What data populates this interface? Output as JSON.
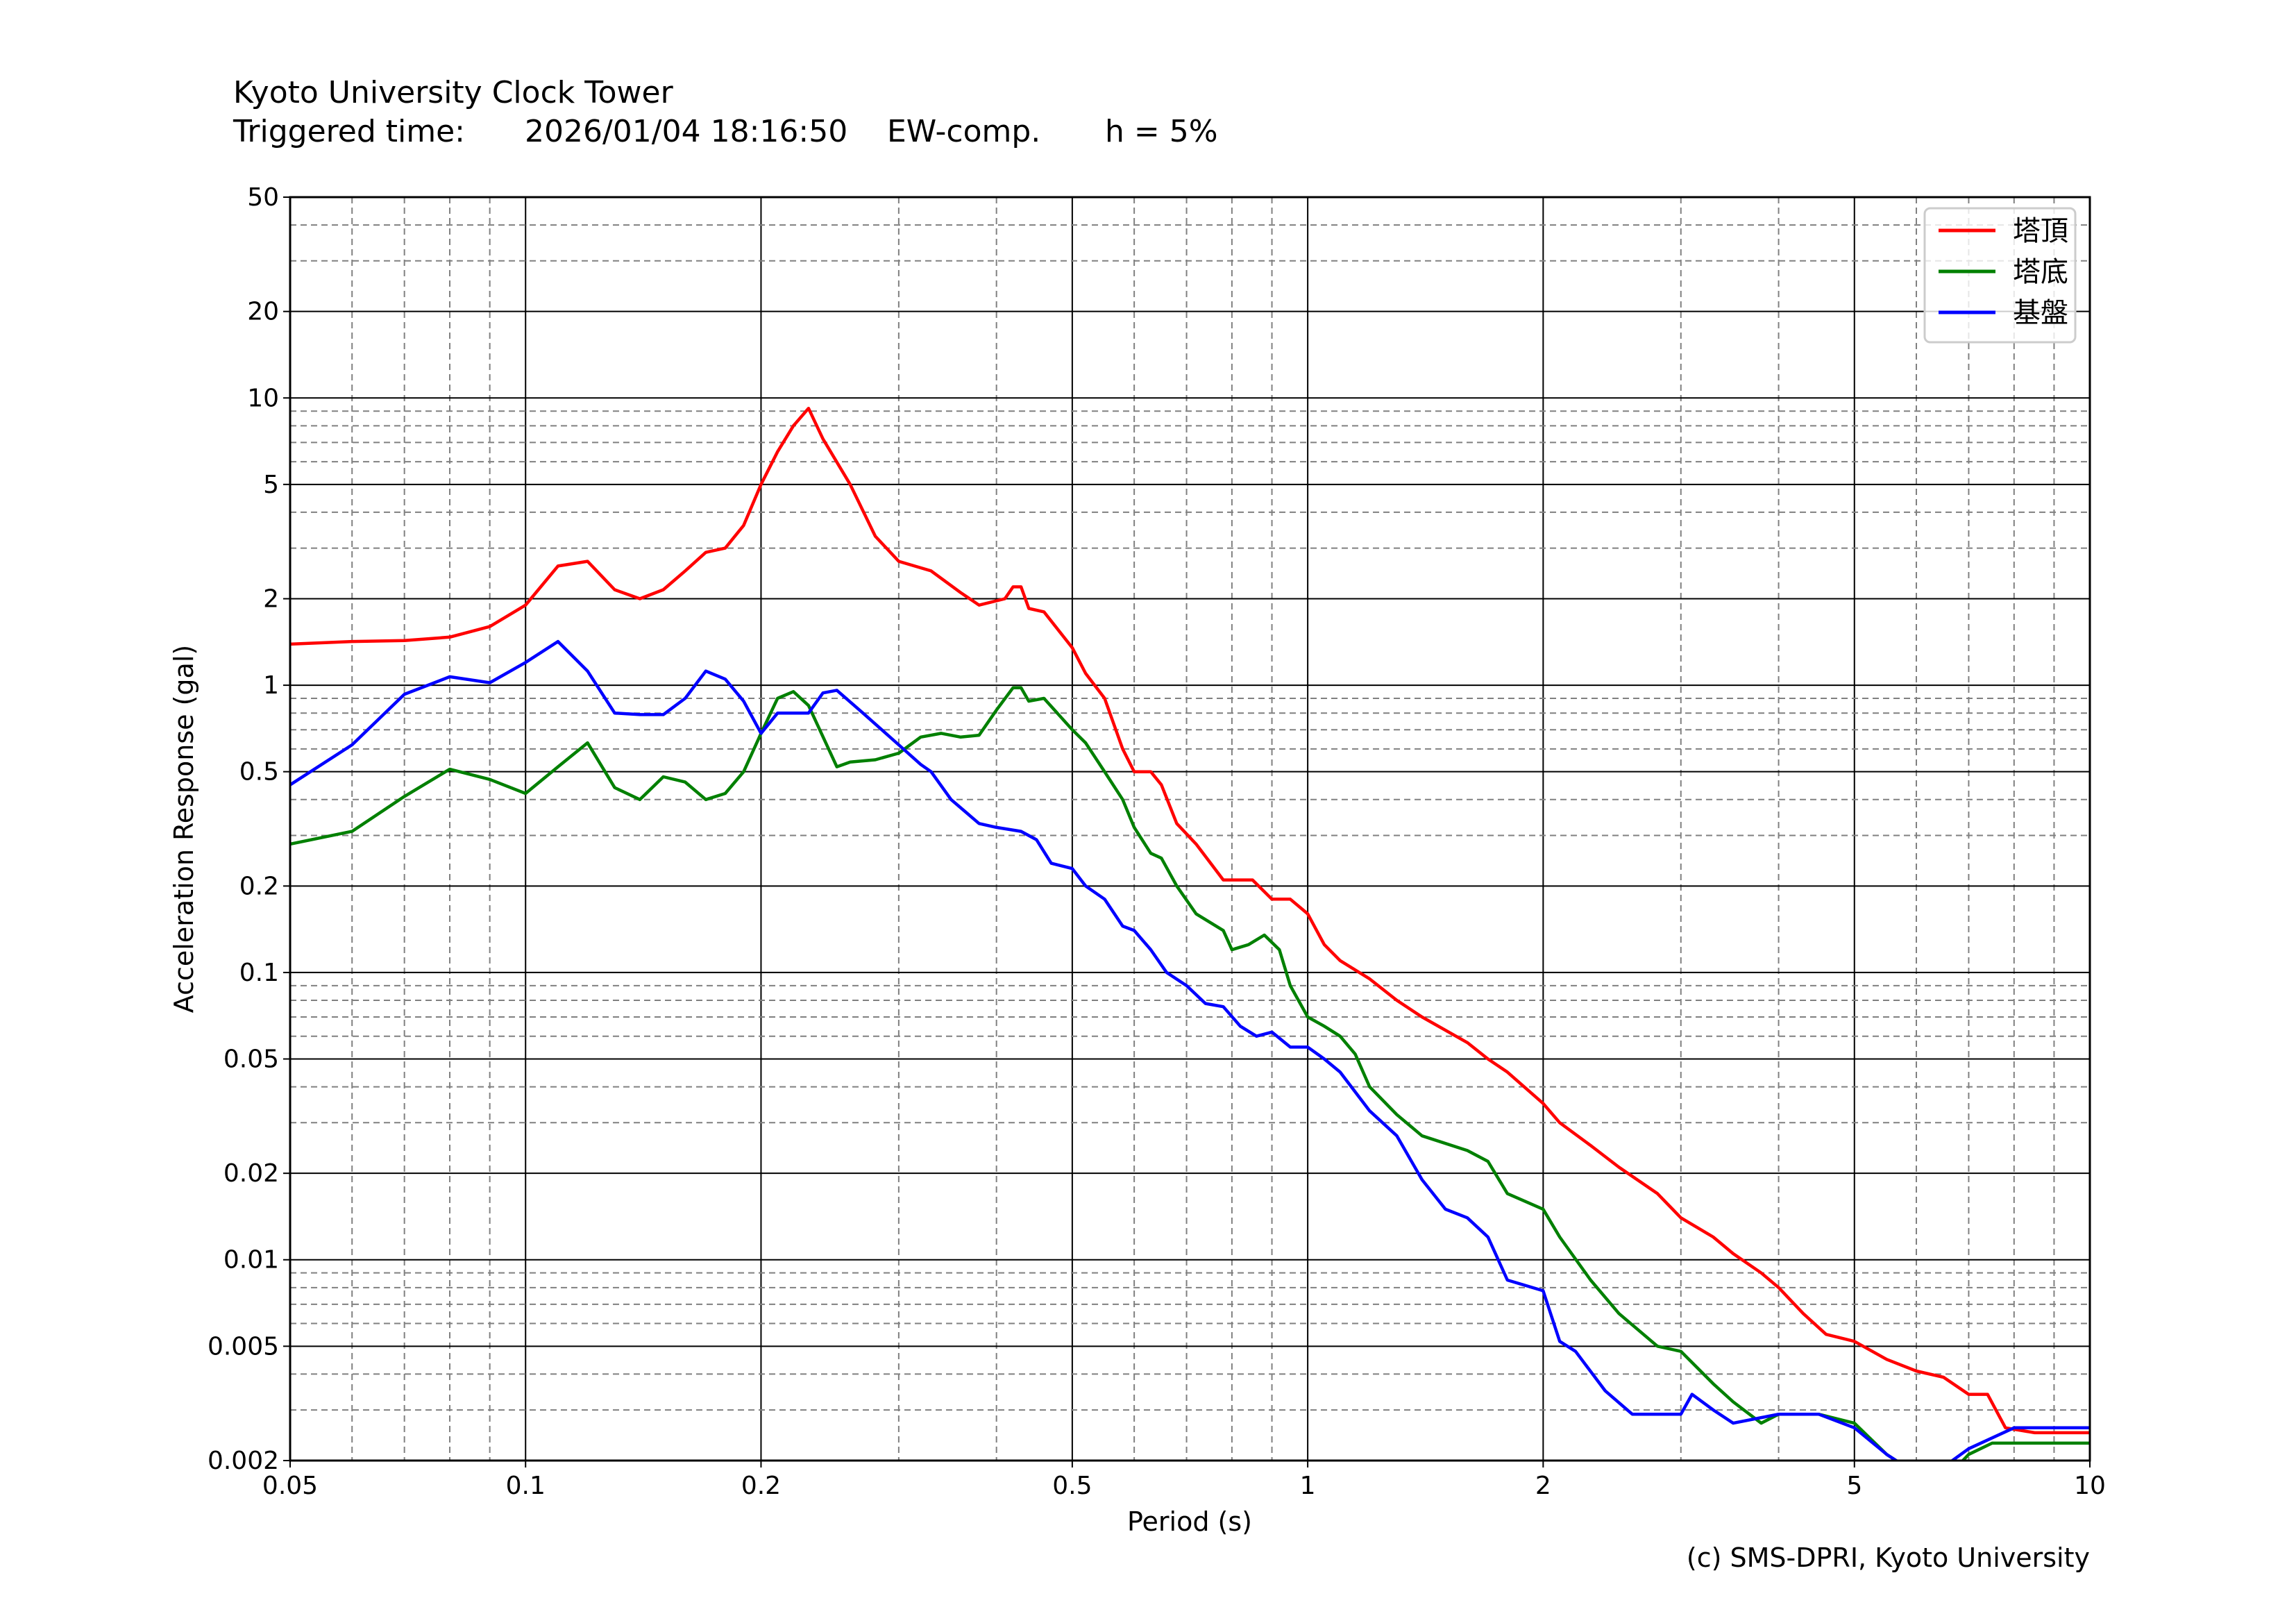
{
  "header": {
    "title": "Kyoto University Clock Tower",
    "trigger_label": "Triggered time:",
    "trigger_time": "2026/01/04 18:16:50",
    "component": "EW-comp.",
    "damping": "h = 5%"
  },
  "credit": "(c) SMS-DPRI, Kyoto University",
  "chart_data": {
    "type": "line",
    "title": "Kyoto University Clock Tower",
    "xlabel": "Period (s)",
    "ylabel": "Acceleration Response (gal)",
    "xscale": "log",
    "yscale": "log",
    "xlim": [
      0.05,
      10
    ],
    "ylim": [
      0.002,
      50
    ],
    "grid": true,
    "legend_position": "top-right",
    "xticks": [
      0.05,
      0.1,
      0.2,
      0.5,
      1,
      2,
      5,
      10
    ],
    "xtick_labels": [
      "0.05",
      "0.1",
      "0.2",
      "0.5",
      "1",
      "2",
      "5",
      "10"
    ],
    "yticks": [
      50,
      20,
      10,
      5,
      2,
      1,
      0.5,
      0.2,
      0.1,
      0.05,
      0.02,
      0.01,
      0.005,
      0.002
    ],
    "ytick_labels": [
      "50",
      "20",
      "10",
      "5",
      "2",
      "1",
      "0.5",
      "0.2",
      "0.1",
      "0.05",
      "0.02",
      "0.01",
      "0.005",
      "0.002"
    ],
    "series": [
      {
        "name": "塔頂",
        "color": "#ff0000",
        "points": [
          [
            0.05,
            1.39
          ],
          [
            0.06,
            1.42
          ],
          [
            0.07,
            1.43
          ],
          [
            0.08,
            1.47
          ],
          [
            0.09,
            1.6
          ],
          [
            0.1,
            1.9
          ],
          [
            0.11,
            2.6
          ],
          [
            0.12,
            2.7
          ],
          [
            0.13,
            2.15
          ],
          [
            0.14,
            2.0
          ],
          [
            0.15,
            2.15
          ],
          [
            0.16,
            2.5
          ],
          [
            0.17,
            2.9
          ],
          [
            0.18,
            3.0
          ],
          [
            0.19,
            3.6
          ],
          [
            0.2,
            5.0
          ],
          [
            0.21,
            6.5
          ],
          [
            0.22,
            8.0
          ],
          [
            0.23,
            9.2
          ],
          [
            0.24,
            7.2
          ],
          [
            0.26,
            5.0
          ],
          [
            0.28,
            3.3
          ],
          [
            0.3,
            2.7
          ],
          [
            0.33,
            2.5
          ],
          [
            0.36,
            2.1
          ],
          [
            0.38,
            1.9
          ],
          [
            0.41,
            2.0
          ],
          [
            0.42,
            2.2
          ],
          [
            0.43,
            2.2
          ],
          [
            0.44,
            1.85
          ],
          [
            0.46,
            1.8
          ],
          [
            0.5,
            1.35
          ],
          [
            0.52,
            1.1
          ],
          [
            0.55,
            0.9
          ],
          [
            0.58,
            0.6
          ],
          [
            0.6,
            0.5
          ],
          [
            0.63,
            0.5
          ],
          [
            0.65,
            0.45
          ],
          [
            0.68,
            0.33
          ],
          [
            0.72,
            0.28
          ],
          [
            0.78,
            0.21
          ],
          [
            0.85,
            0.21
          ],
          [
            0.9,
            0.18
          ],
          [
            0.95,
            0.18
          ],
          [
            1.0,
            0.16
          ],
          [
            1.05,
            0.125
          ],
          [
            1.1,
            0.11
          ],
          [
            1.2,
            0.095
          ],
          [
            1.3,
            0.08
          ],
          [
            1.4,
            0.07
          ],
          [
            1.6,
            0.057
          ],
          [
            1.7,
            0.05
          ],
          [
            1.8,
            0.045
          ],
          [
            2.0,
            0.035
          ],
          [
            2.1,
            0.03
          ],
          [
            2.3,
            0.025
          ],
          [
            2.5,
            0.021
          ],
          [
            2.8,
            0.017
          ],
          [
            3.0,
            0.014
          ],
          [
            3.3,
            0.012
          ],
          [
            3.5,
            0.0105
          ],
          [
            3.8,
            0.009
          ],
          [
            4.0,
            0.008
          ],
          [
            4.3,
            0.0065
          ],
          [
            4.6,
            0.0055
          ],
          [
            5.0,
            0.0052
          ],
          [
            5.5,
            0.0045
          ],
          [
            6.0,
            0.0041
          ],
          [
            6.5,
            0.0039
          ],
          [
            7.0,
            0.0034
          ],
          [
            7.4,
            0.0034
          ],
          [
            7.8,
            0.0026
          ],
          [
            8.5,
            0.0025
          ],
          [
            10,
            0.0025
          ]
        ]
      },
      {
        "name": "塔底",
        "color": "#008000",
        "points": [
          [
            0.05,
            0.28
          ],
          [
            0.06,
            0.31
          ],
          [
            0.07,
            0.41
          ],
          [
            0.08,
            0.51
          ],
          [
            0.09,
            0.47
          ],
          [
            0.1,
            0.42
          ],
          [
            0.11,
            0.52
          ],
          [
            0.12,
            0.63
          ],
          [
            0.13,
            0.44
          ],
          [
            0.14,
            0.4
          ],
          [
            0.15,
            0.48
          ],
          [
            0.16,
            0.46
          ],
          [
            0.17,
            0.4
          ],
          [
            0.18,
            0.42
          ],
          [
            0.19,
            0.5
          ],
          [
            0.2,
            0.68
          ],
          [
            0.21,
            0.9
          ],
          [
            0.22,
            0.95
          ],
          [
            0.23,
            0.85
          ],
          [
            0.25,
            0.52
          ],
          [
            0.26,
            0.54
          ],
          [
            0.28,
            0.55
          ],
          [
            0.3,
            0.58
          ],
          [
            0.32,
            0.66
          ],
          [
            0.34,
            0.68
          ],
          [
            0.36,
            0.66
          ],
          [
            0.38,
            0.67
          ],
          [
            0.4,
            0.82
          ],
          [
            0.42,
            0.98
          ],
          [
            0.43,
            0.98
          ],
          [
            0.44,
            0.88
          ],
          [
            0.46,
            0.9
          ],
          [
            0.5,
            0.7
          ],
          [
            0.52,
            0.63
          ],
          [
            0.55,
            0.5
          ],
          [
            0.58,
            0.4
          ],
          [
            0.6,
            0.32
          ],
          [
            0.63,
            0.26
          ],
          [
            0.65,
            0.25
          ],
          [
            0.68,
            0.2
          ],
          [
            0.72,
            0.16
          ],
          [
            0.78,
            0.14
          ],
          [
            0.8,
            0.12
          ],
          [
            0.84,
            0.125
          ],
          [
            0.88,
            0.135
          ],
          [
            0.92,
            0.12
          ],
          [
            0.95,
            0.09
          ],
          [
            1.0,
            0.07
          ],
          [
            1.05,
            0.065
          ],
          [
            1.1,
            0.06
          ],
          [
            1.15,
            0.052
          ],
          [
            1.2,
            0.04
          ],
          [
            1.3,
            0.032
          ],
          [
            1.4,
            0.027
          ],
          [
            1.6,
            0.024
          ],
          [
            1.7,
            0.022
          ],
          [
            1.8,
            0.017
          ],
          [
            2.0,
            0.015
          ],
          [
            2.1,
            0.012
          ],
          [
            2.3,
            0.0085
          ],
          [
            2.5,
            0.0065
          ],
          [
            2.8,
            0.005
          ],
          [
            3.0,
            0.0048
          ],
          [
            3.3,
            0.0037
          ],
          [
            3.5,
            0.0032
          ],
          [
            3.8,
            0.0027
          ],
          [
            4.0,
            0.0029
          ],
          [
            4.5,
            0.0029
          ],
          [
            5.0,
            0.0027
          ],
          [
            5.5,
            0.0021
          ],
          [
            6.0,
            0.0018
          ],
          [
            6.5,
            0.0017
          ],
          [
            7.0,
            0.0021
          ],
          [
            7.5,
            0.0023
          ],
          [
            8,
            0.0023
          ],
          [
            9,
            0.0023
          ],
          [
            10,
            0.0023
          ]
        ]
      },
      {
        "name": "基盤",
        "color": "#0000ff",
        "points": [
          [
            0.05,
            0.45
          ],
          [
            0.06,
            0.62
          ],
          [
            0.07,
            0.93
          ],
          [
            0.08,
            1.07
          ],
          [
            0.09,
            1.02
          ],
          [
            0.1,
            1.2
          ],
          [
            0.11,
            1.42
          ],
          [
            0.12,
            1.12
          ],
          [
            0.13,
            0.8
          ],
          [
            0.14,
            0.79
          ],
          [
            0.15,
            0.79
          ],
          [
            0.16,
            0.9
          ],
          [
            0.17,
            1.12
          ],
          [
            0.18,
            1.05
          ],
          [
            0.19,
            0.88
          ],
          [
            0.2,
            0.68
          ],
          [
            0.21,
            0.8
          ],
          [
            0.22,
            0.8
          ],
          [
            0.23,
            0.8
          ],
          [
            0.24,
            0.94
          ],
          [
            0.25,
            0.96
          ],
          [
            0.27,
            0.8
          ],
          [
            0.3,
            0.62
          ],
          [
            0.32,
            0.53
          ],
          [
            0.33,
            0.5
          ],
          [
            0.35,
            0.4
          ],
          [
            0.38,
            0.33
          ],
          [
            0.4,
            0.32
          ],
          [
            0.43,
            0.31
          ],
          [
            0.45,
            0.29
          ],
          [
            0.47,
            0.24
          ],
          [
            0.5,
            0.23
          ],
          [
            0.52,
            0.2
          ],
          [
            0.55,
            0.18
          ],
          [
            0.58,
            0.145
          ],
          [
            0.6,
            0.14
          ],
          [
            0.63,
            0.12
          ],
          [
            0.66,
            0.1
          ],
          [
            0.7,
            0.09
          ],
          [
            0.74,
            0.078
          ],
          [
            0.78,
            0.076
          ],
          [
            0.82,
            0.065
          ],
          [
            0.86,
            0.06
          ],
          [
            0.9,
            0.062
          ],
          [
            0.95,
            0.055
          ],
          [
            1.0,
            0.055
          ],
          [
            1.05,
            0.05
          ],
          [
            1.1,
            0.045
          ],
          [
            1.2,
            0.033
          ],
          [
            1.3,
            0.027
          ],
          [
            1.4,
            0.019
          ],
          [
            1.5,
            0.015
          ],
          [
            1.6,
            0.014
          ],
          [
            1.7,
            0.012
          ],
          [
            1.8,
            0.0085
          ],
          [
            2.0,
            0.0078
          ],
          [
            2.1,
            0.0052
          ],
          [
            2.2,
            0.0048
          ],
          [
            2.4,
            0.0035
          ],
          [
            2.6,
            0.0029
          ],
          [
            2.8,
            0.0029
          ],
          [
            3.0,
            0.0029
          ],
          [
            3.1,
            0.0034
          ],
          [
            3.3,
            0.003
          ],
          [
            3.5,
            0.0027
          ],
          [
            4.0,
            0.0029
          ],
          [
            4.5,
            0.0029
          ],
          [
            5.0,
            0.0026
          ],
          [
            5.5,
            0.0021
          ],
          [
            6.0,
            0.0018
          ],
          [
            6.5,
            0.0019
          ],
          [
            7,
            0.0022
          ],
          [
            8,
            0.0026
          ],
          [
            9,
            0.0026
          ],
          [
            10,
            0.0026
          ]
        ]
      }
    ]
  }
}
